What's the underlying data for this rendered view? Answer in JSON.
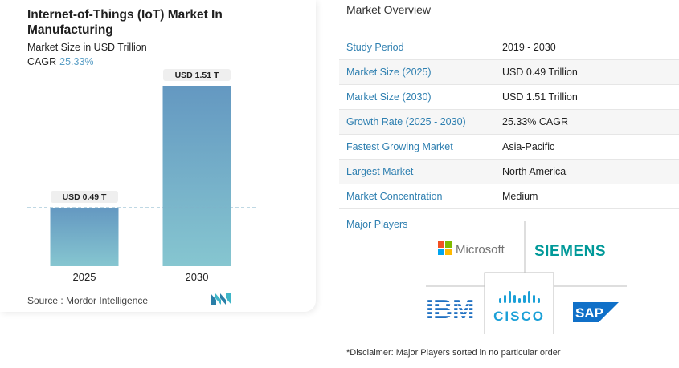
{
  "chart_data": {
    "type": "bar",
    "title": "Internet-of-Things (IoT) Market In Manufacturing",
    "subtitle": "Market Size in USD Trillion",
    "cagr_label": "CAGR",
    "cagr_value": "25.33%",
    "categories": [
      "2025",
      "2030"
    ],
    "values": [
      0.49,
      1.51
    ],
    "data_labels": [
      "USD 0.49 T",
      "USD 1.51 T"
    ],
    "ylim": [
      0,
      1.51
    ],
    "colors": {
      "bar_top": "#6498c1",
      "bar_bottom": "#86c6d0",
      "label_bg": "#efefef",
      "ref_line": "#7fb2c9"
    }
  },
  "source": "Source :  Mordor Intelligence",
  "overview": {
    "title": "Market Overview",
    "rows": [
      {
        "label": "Study Period",
        "value": "2019 - 2030"
      },
      {
        "label": "Market Size (2025)",
        "value": "USD 0.49 Trillion"
      },
      {
        "label": "Market Size (2030)",
        "value": "USD 1.51 Trillion"
      },
      {
        "label": "Growth Rate (2025 - 2030)",
        "value": "25.33% CAGR"
      },
      {
        "label": "Fastest Growing Market",
        "value": "Asia-Pacific"
      },
      {
        "label": "Largest Market",
        "value": "North America"
      },
      {
        "label": "Market Concentration",
        "value": "Medium"
      }
    ]
  },
  "major_players": {
    "label": "Major Players",
    "names": [
      "Microsoft",
      "SIEMENS",
      "IBM",
      "CISCO",
      "SAP"
    ]
  },
  "disclaimer": "*Disclaimer: Major Players sorted in no particular order"
}
